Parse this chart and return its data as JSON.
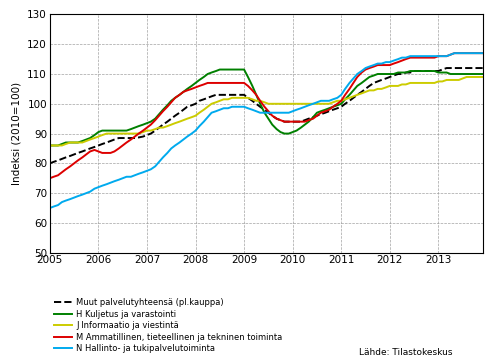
{
  "title": "",
  "ylabel": "Indeksi (2010=100)",
  "source": "Lähde: Tilastokeskus",
  "ylim": [
    50,
    130
  ],
  "xlim": [
    2005.0,
    2013.92
  ],
  "yticks": [
    50,
    60,
    70,
    80,
    90,
    100,
    110,
    120,
    130
  ],
  "xticks": [
    2005,
    2006,
    2007,
    2008,
    2009,
    2010,
    2011,
    2012,
    2013
  ],
  "series": {
    "Muut palvelutyhteensä (pl.kauppa)": {
      "color": "#000000",
      "linestyle": "--",
      "linewidth": 1.4,
      "x": [
        2005.0,
        2005.08,
        2005.17,
        2005.25,
        2005.33,
        2005.42,
        2005.5,
        2005.58,
        2005.67,
        2005.75,
        2005.83,
        2005.92,
        2006.0,
        2006.08,
        2006.17,
        2006.25,
        2006.33,
        2006.42,
        2006.5,
        2006.58,
        2006.67,
        2006.75,
        2006.83,
        2006.92,
        2007.0,
        2007.08,
        2007.17,
        2007.25,
        2007.33,
        2007.42,
        2007.5,
        2007.58,
        2007.67,
        2007.75,
        2007.83,
        2007.92,
        2008.0,
        2008.08,
        2008.17,
        2008.25,
        2008.33,
        2008.42,
        2008.5,
        2008.58,
        2008.67,
        2008.75,
        2008.83,
        2008.92,
        2009.0,
        2009.08,
        2009.17,
        2009.25,
        2009.33,
        2009.42,
        2009.5,
        2009.58,
        2009.67,
        2009.75,
        2009.83,
        2009.92,
        2010.0,
        2010.08,
        2010.17,
        2010.25,
        2010.33,
        2010.42,
        2010.5,
        2010.58,
        2010.67,
        2010.75,
        2010.83,
        2010.92,
        2011.0,
        2011.08,
        2011.17,
        2011.25,
        2011.33,
        2011.42,
        2011.5,
        2011.58,
        2011.67,
        2011.75,
        2011.83,
        2011.92,
        2012.0,
        2012.08,
        2012.17,
        2012.25,
        2012.33,
        2012.42,
        2012.5,
        2012.58,
        2012.67,
        2012.75,
        2012.83,
        2012.92,
        2013.0,
        2013.08,
        2013.17,
        2013.25,
        2013.33,
        2013.42,
        2013.5,
        2013.58,
        2013.67,
        2013.75,
        2013.83,
        2013.92
      ],
      "y": [
        80,
        80.5,
        81,
        81.5,
        82,
        82.5,
        83,
        83.5,
        84,
        84.5,
        85,
        85.5,
        86,
        86.5,
        87,
        87.5,
        88,
        88.5,
        88.5,
        88.5,
        88.5,
        88.5,
        88.7,
        89,
        89.5,
        90,
        91,
        92,
        93,
        94,
        95,
        96,
        97,
        98,
        99,
        99.5,
        100,
        101,
        101.5,
        102,
        102.5,
        103,
        103,
        103,
        103,
        103,
        103,
        103,
        103,
        102,
        101,
        100,
        99,
        98,
        97,
        96,
        95,
        94.5,
        94,
        94,
        94,
        94,
        94,
        94.5,
        95,
        95.5,
        96,
        96.5,
        97,
        97.5,
        98,
        98.5,
        99,
        100,
        101,
        102,
        103,
        104,
        105,
        106,
        107,
        107.5,
        108,
        108.5,
        109,
        109.5,
        110,
        110,
        110.5,
        110.5,
        111,
        111,
        111,
        111,
        111,
        111,
        111,
        111.5,
        112,
        112,
        112,
        112,
        112,
        112,
        112,
        112,
        112,
        112
      ]
    },
    "H Kuljetus ja varastointi": {
      "color": "#008000",
      "linestyle": "-",
      "linewidth": 1.4,
      "x": [
        2005.0,
        2005.08,
        2005.17,
        2005.25,
        2005.33,
        2005.42,
        2005.5,
        2005.58,
        2005.67,
        2005.75,
        2005.83,
        2005.92,
        2006.0,
        2006.08,
        2006.17,
        2006.25,
        2006.33,
        2006.42,
        2006.5,
        2006.58,
        2006.67,
        2006.75,
        2006.83,
        2006.92,
        2007.0,
        2007.08,
        2007.17,
        2007.25,
        2007.33,
        2007.42,
        2007.5,
        2007.58,
        2007.67,
        2007.75,
        2007.83,
        2007.92,
        2008.0,
        2008.08,
        2008.17,
        2008.25,
        2008.33,
        2008.42,
        2008.5,
        2008.58,
        2008.67,
        2008.75,
        2008.83,
        2008.92,
        2009.0,
        2009.08,
        2009.17,
        2009.25,
        2009.33,
        2009.42,
        2009.5,
        2009.58,
        2009.67,
        2009.75,
        2009.83,
        2009.92,
        2010.0,
        2010.08,
        2010.17,
        2010.25,
        2010.33,
        2010.42,
        2010.5,
        2010.58,
        2010.67,
        2010.75,
        2010.83,
        2010.92,
        2011.0,
        2011.08,
        2011.17,
        2011.25,
        2011.33,
        2011.42,
        2011.5,
        2011.58,
        2011.67,
        2011.75,
        2011.83,
        2011.92,
        2012.0,
        2012.08,
        2012.17,
        2012.25,
        2012.33,
        2012.42,
        2012.5,
        2012.58,
        2012.67,
        2012.75,
        2012.83,
        2012.92,
        2013.0,
        2013.08,
        2013.17,
        2013.25,
        2013.33,
        2013.42,
        2013.5,
        2013.58,
        2013.67,
        2013.75,
        2013.83,
        2013.92
      ],
      "y": [
        86,
        86,
        86,
        86.5,
        87,
        87,
        87,
        87,
        87.5,
        88,
        88.5,
        89.5,
        90.5,
        91,
        91,
        91,
        91,
        91,
        91,
        91,
        91.5,
        92,
        92.5,
        93,
        93.5,
        94,
        95,
        96.5,
        98,
        99.5,
        101,
        102,
        103,
        104,
        105,
        106,
        107,
        108,
        109,
        110,
        110.5,
        111,
        111.5,
        111.5,
        111.5,
        111.5,
        111.5,
        111.5,
        111.5,
        109,
        106,
        103,
        100,
        97,
        95,
        93,
        91.5,
        90.5,
        90,
        90,
        90.5,
        91,
        92,
        93,
        94,
        95.5,
        97,
        97.5,
        98,
        98.5,
        99,
        99.5,
        100,
        101.5,
        103,
        104.5,
        106,
        107,
        108,
        109,
        109.5,
        110,
        110,
        110,
        110,
        110,
        110.5,
        110.5,
        110.5,
        111,
        111,
        111,
        111,
        111,
        111,
        111,
        110.5,
        110.5,
        110.5,
        110,
        110,
        110,
        110,
        110,
        110,
        110,
        110,
        110
      ]
    },
    "J Informaatio ja viestintä": {
      "color": "#cccc00",
      "linestyle": "-",
      "linewidth": 1.4,
      "x": [
        2005.0,
        2005.08,
        2005.17,
        2005.25,
        2005.33,
        2005.42,
        2005.5,
        2005.58,
        2005.67,
        2005.75,
        2005.83,
        2005.92,
        2006.0,
        2006.08,
        2006.17,
        2006.25,
        2006.33,
        2006.42,
        2006.5,
        2006.58,
        2006.67,
        2006.75,
        2006.83,
        2006.92,
        2007.0,
        2007.08,
        2007.17,
        2007.25,
        2007.33,
        2007.42,
        2007.5,
        2007.58,
        2007.67,
        2007.75,
        2007.83,
        2007.92,
        2008.0,
        2008.08,
        2008.17,
        2008.25,
        2008.33,
        2008.42,
        2008.5,
        2008.58,
        2008.67,
        2008.75,
        2008.83,
        2008.92,
        2009.0,
        2009.08,
        2009.17,
        2009.25,
        2009.33,
        2009.42,
        2009.5,
        2009.58,
        2009.67,
        2009.75,
        2009.83,
        2009.92,
        2010.0,
        2010.08,
        2010.17,
        2010.25,
        2010.33,
        2010.42,
        2010.5,
        2010.58,
        2010.67,
        2010.75,
        2010.83,
        2010.92,
        2011.0,
        2011.08,
        2011.17,
        2011.25,
        2011.33,
        2011.42,
        2011.5,
        2011.58,
        2011.67,
        2011.75,
        2011.83,
        2011.92,
        2012.0,
        2012.08,
        2012.17,
        2012.25,
        2012.33,
        2012.42,
        2012.5,
        2012.58,
        2012.67,
        2012.75,
        2012.83,
        2012.92,
        2013.0,
        2013.08,
        2013.17,
        2013.25,
        2013.33,
        2013.42,
        2013.5,
        2013.58,
        2013.67,
        2013.75,
        2013.83,
        2013.92
      ],
      "y": [
        86,
        86,
        86,
        86,
        86.5,
        87,
        87,
        87,
        87,
        87.5,
        88,
        88.5,
        89,
        89.5,
        90,
        90,
        90,
        90,
        90,
        90,
        90,
        90,
        90,
        90.5,
        91,
        91,
        91.5,
        92,
        92,
        92.5,
        93,
        93.5,
        94,
        94.5,
        95,
        95.5,
        96,
        97,
        98,
        99,
        100,
        100.5,
        101,
        101.5,
        101.5,
        102,
        102,
        102,
        102,
        102,
        101.5,
        101,
        101,
        100.5,
        100,
        100,
        100,
        100,
        100,
        100,
        100,
        100,
        100,
        100,
        100,
        100,
        100,
        100,
        100,
        100,
        100.5,
        101,
        101,
        101.5,
        102,
        102.5,
        103,
        103.5,
        104,
        104.5,
        104.5,
        105,
        105,
        105.5,
        106,
        106,
        106,
        106.5,
        106.5,
        107,
        107,
        107,
        107,
        107,
        107,
        107,
        107.5,
        107.5,
        108,
        108,
        108,
        108,
        108.5,
        109,
        109,
        109,
        109,
        109
      ]
    },
    "M Ammatillinen, tieteellinen ja tekninen toiminta": {
      "color": "#dd0000",
      "linestyle": "-",
      "linewidth": 1.4,
      "x": [
        2005.0,
        2005.08,
        2005.17,
        2005.25,
        2005.33,
        2005.42,
        2005.5,
        2005.58,
        2005.67,
        2005.75,
        2005.83,
        2005.92,
        2006.0,
        2006.08,
        2006.17,
        2006.25,
        2006.33,
        2006.42,
        2006.5,
        2006.58,
        2006.67,
        2006.75,
        2006.83,
        2006.92,
        2007.0,
        2007.08,
        2007.17,
        2007.25,
        2007.33,
        2007.42,
        2007.5,
        2007.58,
        2007.67,
        2007.75,
        2007.83,
        2007.92,
        2008.0,
        2008.08,
        2008.17,
        2008.25,
        2008.33,
        2008.42,
        2008.5,
        2008.58,
        2008.67,
        2008.75,
        2008.83,
        2008.92,
        2009.0,
        2009.08,
        2009.17,
        2009.25,
        2009.33,
        2009.42,
        2009.5,
        2009.58,
        2009.67,
        2009.75,
        2009.83,
        2009.92,
        2010.0,
        2010.08,
        2010.17,
        2010.25,
        2010.33,
        2010.42,
        2010.5,
        2010.58,
        2010.67,
        2010.75,
        2010.83,
        2010.92,
        2011.0,
        2011.08,
        2011.17,
        2011.25,
        2011.33,
        2011.42,
        2011.5,
        2011.58,
        2011.67,
        2011.75,
        2011.83,
        2011.92,
        2012.0,
        2012.08,
        2012.17,
        2012.25,
        2012.33,
        2012.42,
        2012.5,
        2012.58,
        2012.67,
        2012.75,
        2012.83,
        2012.92,
        2013.0,
        2013.08,
        2013.17,
        2013.25,
        2013.33,
        2013.42,
        2013.5,
        2013.58,
        2013.67,
        2013.75,
        2013.83,
        2013.92
      ],
      "y": [
        75,
        75.5,
        76,
        77,
        78,
        79,
        80,
        81,
        82,
        83,
        84,
        84.5,
        84,
        83.5,
        83.5,
        83.5,
        84,
        85,
        86,
        87,
        88,
        89,
        90,
        91,
        92,
        93,
        94.5,
        96,
        97.5,
        99,
        100.5,
        102,
        103,
        104,
        104.5,
        105,
        105.5,
        106,
        106.5,
        107,
        107,
        107,
        107,
        107,
        107,
        107,
        107,
        107,
        107,
        106,
        104.5,
        103,
        101,
        99,
        97.5,
        96,
        95,
        94.5,
        94,
        94,
        94,
        94,
        94,
        94,
        94.5,
        95,
        96,
        97,
        97.5,
        98,
        99,
        100,
        101,
        103,
        105,
        107,
        109,
        110.5,
        111.5,
        112,
        112.5,
        113,
        113,
        113,
        113,
        113.5,
        114,
        114.5,
        115,
        115.5,
        115.5,
        115.5,
        115.5,
        115.5,
        115.5,
        115.5,
        116,
        116,
        116,
        116.5,
        117,
        117,
        117,
        117,
        117,
        117,
        117,
        117
      ]
    },
    "N Hallinto- ja tukipalvelutoiminta": {
      "color": "#00aaee",
      "linestyle": "-",
      "linewidth": 1.4,
      "x": [
        2005.0,
        2005.08,
        2005.17,
        2005.25,
        2005.33,
        2005.42,
        2005.5,
        2005.58,
        2005.67,
        2005.75,
        2005.83,
        2005.92,
        2006.0,
        2006.08,
        2006.17,
        2006.25,
        2006.33,
        2006.42,
        2006.5,
        2006.58,
        2006.67,
        2006.75,
        2006.83,
        2006.92,
        2007.0,
        2007.08,
        2007.17,
        2007.25,
        2007.33,
        2007.42,
        2007.5,
        2007.58,
        2007.67,
        2007.75,
        2007.83,
        2007.92,
        2008.0,
        2008.08,
        2008.17,
        2008.25,
        2008.33,
        2008.42,
        2008.5,
        2008.58,
        2008.67,
        2008.75,
        2008.83,
        2008.92,
        2009.0,
        2009.08,
        2009.17,
        2009.25,
        2009.33,
        2009.42,
        2009.5,
        2009.58,
        2009.67,
        2009.75,
        2009.83,
        2009.92,
        2010.0,
        2010.08,
        2010.17,
        2010.25,
        2010.33,
        2010.42,
        2010.5,
        2010.58,
        2010.67,
        2010.75,
        2010.83,
        2010.92,
        2011.0,
        2011.08,
        2011.17,
        2011.25,
        2011.33,
        2011.42,
        2011.5,
        2011.58,
        2011.67,
        2011.75,
        2011.83,
        2011.92,
        2012.0,
        2012.08,
        2012.17,
        2012.25,
        2012.33,
        2012.42,
        2012.5,
        2012.58,
        2012.67,
        2012.75,
        2012.83,
        2012.92,
        2013.0,
        2013.08,
        2013.17,
        2013.25,
        2013.33,
        2013.42,
        2013.5,
        2013.58,
        2013.67,
        2013.75,
        2013.83,
        2013.92
      ],
      "y": [
        65,
        65.5,
        66,
        67,
        67.5,
        68,
        68.5,
        69,
        69.5,
        70,
        70.5,
        71.5,
        72,
        72.5,
        73,
        73.5,
        74,
        74.5,
        75,
        75.5,
        75.5,
        76,
        76.5,
        77,
        77.5,
        78,
        79,
        80.5,
        82,
        83.5,
        85,
        86,
        87,
        88,
        89,
        90,
        91,
        92.5,
        94,
        95.5,
        97,
        97.5,
        98,
        98.5,
        98.5,
        99,
        99,
        99,
        99,
        98.5,
        98,
        97.5,
        97,
        97,
        97,
        97,
        97,
        97,
        97,
        97,
        97.5,
        98,
        98.5,
        99,
        99.5,
        100,
        100.5,
        101,
        101,
        101,
        101.5,
        102,
        103,
        105,
        107,
        108.5,
        110,
        111,
        112,
        112.5,
        113,
        113.5,
        113.5,
        114,
        114,
        114.5,
        115,
        115.5,
        115.5,
        116,
        116,
        116,
        116,
        116,
        116,
        116,
        116,
        116,
        116,
        116.5,
        117,
        117,
        117,
        117,
        117,
        117,
        117,
        117
      ]
    }
  },
  "legend_labels": [
    "Muut palvelutyhteensä (pl.kauppa)",
    "H Kuljetus ja varastointi",
    "J Informaatio ja viestintä",
    "M Ammatillinen, tieteellinen ja tekninen toiminta",
    "N Hallinto- ja tukipalvelutoiminta"
  ]
}
